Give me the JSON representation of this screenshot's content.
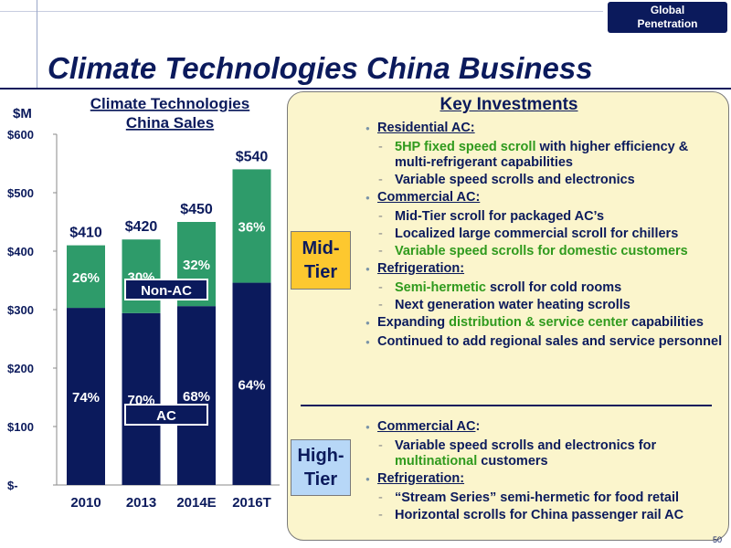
{
  "header": {
    "tab_label": "Global\nPenetration",
    "title": "Climate Technologies China Business"
  },
  "chart_data": {
    "type": "bar",
    "stacked": true,
    "title": "Climate Technologies China Sales",
    "unit_label": "$M",
    "ylim": [
      0,
      600
    ],
    "y_ticks": [
      "$-",
      "$100",
      "$200",
      "$300",
      "$400",
      "$500",
      "$600"
    ],
    "y_tick_values": [
      0,
      100,
      200,
      300,
      400,
      500,
      600
    ],
    "categories": [
      "2010",
      "2013",
      "2014E",
      "2016T"
    ],
    "totals": [
      410,
      420,
      450,
      540
    ],
    "total_labels": [
      "$410",
      "$420",
      "$450",
      "$540"
    ],
    "series": [
      {
        "name": "AC",
        "percent_labels": [
          "74%",
          "70%",
          "68%",
          "64%"
        ],
        "values": [
          303,
          294,
          306,
          346
        ],
        "color": "#0b1a5c"
      },
      {
        "name": "Non-AC",
        "percent_labels": [
          "26%",
          "30%",
          "32%",
          "36%"
        ],
        "values": [
          107,
          126,
          144,
          194
        ],
        "color": "#2e9b6a"
      }
    ]
  },
  "panel": {
    "title": "Key Investments",
    "mid_tier": "Mid-\nTier",
    "high_tier": "High-\nTier",
    "mid_items": [
      {
        "head": "Residential AC:",
        "subs": [
          {
            "parts": [
              {
                "t": "5HP fixed speed scroll",
                "g": true
              },
              {
                "t": " with higher efficiency & multi-refrigerant capabilities",
                "g": false
              }
            ]
          },
          {
            "parts": [
              {
                "t": "Variable speed scrolls and electronics",
                "g": false
              }
            ]
          }
        ]
      },
      {
        "head": "Commercial AC:",
        "subs": [
          {
            "parts": [
              {
                "t": "Mid-Tier scroll for packaged AC’s",
                "g": false
              }
            ]
          },
          {
            "parts": [
              {
                "t": "Localized large commercial scroll for chillers",
                "g": false
              }
            ]
          },
          {
            "parts": [
              {
                "t": "Variable speed scrolls for domestic customers",
                "g": true
              }
            ]
          }
        ]
      },
      {
        "head": "Refrigeration:",
        "subs": [
          {
            "parts": [
              {
                "t": "Semi-hermetic",
                "g": true
              },
              {
                "t": " scroll for cold rooms",
                "g": false
              }
            ]
          },
          {
            "parts": [
              {
                "t": "Next generation water heating scrolls",
                "g": false
              }
            ]
          }
        ]
      }
    ],
    "mid_plain": [
      {
        "parts": [
          {
            "t": "Expanding ",
            "g": false
          },
          {
            "t": "distribution & service center",
            "g": true
          },
          {
            "t": " capabilities",
            "g": false
          }
        ]
      },
      {
        "parts": [
          {
            "t": "Continued to add regional sales and service personnel",
            "g": false
          }
        ]
      }
    ],
    "high_items": [
      {
        "head": "Commercial AC",
        "tail": ":",
        "subs": [
          {
            "parts": [
              {
                "t": "Variable speed scrolls and electronics for ",
                "g": false
              },
              {
                "t": "multinational",
                "g": true
              },
              {
                "t": " customers",
                "g": false
              }
            ]
          }
        ]
      },
      {
        "head": "Refrigeration:",
        "tail": "",
        "subs": [
          {
            "parts": [
              {
                "t": "“Stream Series” semi-hermetic for food retail",
                "g": false
              }
            ]
          },
          {
            "parts": [
              {
                "t": "Horizontal scrolls for China passenger rail AC",
                "g": false
              }
            ]
          }
        ]
      }
    ],
    "page_number": "50"
  }
}
